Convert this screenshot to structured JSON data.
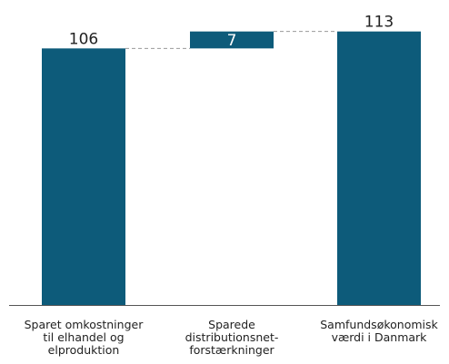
{
  "chart_data": {
    "type": "bar",
    "subtype": "waterfall",
    "categories": [
      [
        "Sparet omkostninger",
        "til elhandel og",
        "elproduktion"
      ],
      [
        "Sparede",
        "distributionsnet-",
        "forstærkninger"
      ],
      [
        "Samfundsøkonomisk",
        "værdi i Danmark"
      ]
    ],
    "values": [
      106,
      7,
      113
    ],
    "bar_kind": [
      "total",
      "delta",
      "total"
    ],
    "labels": [
      "106",
      "7",
      "113"
    ],
    "label_position": [
      "above",
      "inside",
      "above"
    ],
    "ylim": [
      0,
      120
    ],
    "grid": false,
    "legend": "none",
    "title": "",
    "xlabel": "",
    "ylabel": ""
  },
  "colors": {
    "bar": "#0d5b7a",
    "connector": "#999999",
    "axis": "#555555"
  }
}
